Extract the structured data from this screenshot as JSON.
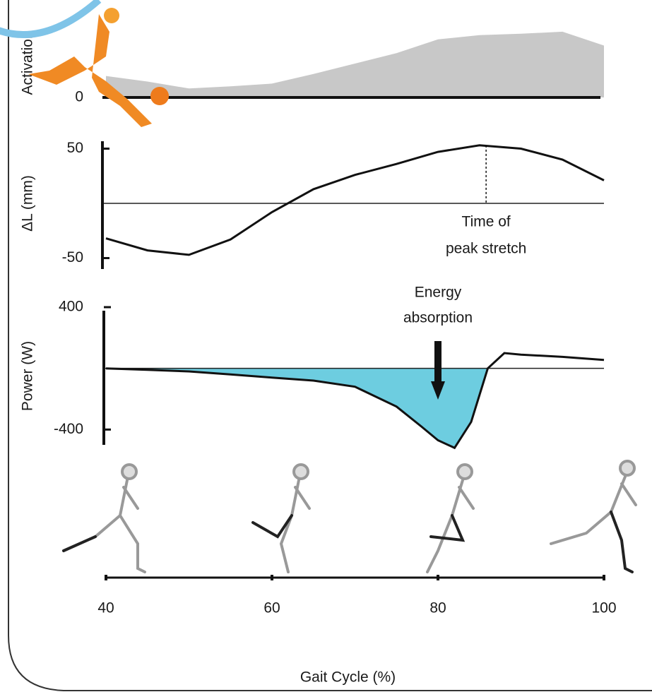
{
  "chart_data": [
    {
      "type": "area",
      "ylabel": "Activation",
      "color": "#c8c8c8",
      "x": [
        40,
        45,
        50,
        55,
        60,
        65,
        70,
        75,
        80,
        85,
        90,
        95,
        100
      ],
      "values": [
        31,
        23,
        13,
        16,
        20,
        34,
        49,
        64,
        84,
        90,
        92,
        95,
        75
      ],
      "xlim": [
        40,
        100
      ],
      "ylim": [
        0,
        100
      ],
      "yticks": [
        0
      ]
    },
    {
      "type": "line",
      "ylabel": "ΔL (mm)",
      "color": "#111111",
      "x": [
        40,
        45,
        50,
        55,
        60,
        65,
        70,
        75,
        80,
        85,
        90,
        95,
        100
      ],
      "values": [
        -32,
        -43,
        -47,
        -33,
        -8,
        13,
        26,
        36,
        47,
        53,
        50,
        40,
        21
      ],
      "xlim": [
        40,
        100
      ],
      "ylim": [
        -60,
        60
      ],
      "yticks": [
        -50,
        50
      ],
      "annotation": [
        "Time of",
        "peak stretch"
      ],
      "annotation_x": 85.8
    },
    {
      "type": "line",
      "ylabel": "Power (W)",
      "color": "#111111",
      "fill_negative": "#6dcde0",
      "x": [
        40,
        45,
        50,
        55,
        60,
        65,
        70,
        75,
        78,
        80,
        82,
        84,
        86,
        88,
        90,
        95,
        100
      ],
      "values": [
        0,
        -10,
        -20,
        -40,
        -60,
        -80,
        -120,
        -250,
        -380,
        -470,
        -520,
        -350,
        0,
        100,
        90,
        75,
        55
      ],
      "xlim": [
        40,
        100
      ],
      "ylim": [
        -500,
        400
      ],
      "yticks": [
        -400,
        400
      ],
      "annotation": [
        "Energy",
        "absorption"
      ],
      "annotation_x": 80,
      "xticks": [
        40,
        60,
        80,
        100
      ],
      "xlabel": "Gait Cycle (%)"
    }
  ]
}
